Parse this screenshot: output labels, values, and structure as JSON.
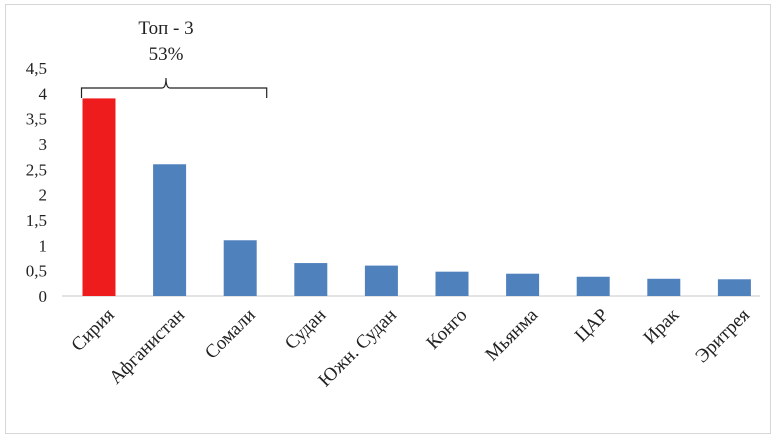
{
  "chart_data": {
    "type": "bar",
    "categories": [
      "Сирия",
      "Афганистан",
      "Сомали",
      "Судан",
      "Южн. Судан",
      "Конго",
      "Мьянма",
      "ЦАР",
      "Ирак",
      "Эритрея"
    ],
    "values": [
      3.9,
      2.6,
      1.1,
      0.65,
      0.6,
      0.48,
      0.44,
      0.38,
      0.34,
      0.33
    ],
    "colors": [
      "#ee1c1c",
      "#4f81bd",
      "#4f81bd",
      "#4f81bd",
      "#4f81bd",
      "#4f81bd",
      "#4f81bd",
      "#4f81bd",
      "#4f81bd",
      "#4f81bd"
    ],
    "ylim": [
      0,
      4.5
    ],
    "yticks": [
      "0",
      "0,5",
      "1",
      "1,5",
      "2",
      "2,5",
      "3",
      "3,5",
      "4",
      "4,5"
    ],
    "grid": false,
    "legend": "none",
    "annotation": {
      "line1": "Топ - 3",
      "line2": "53%",
      "spans_categories": [
        0,
        2
      ]
    }
  }
}
